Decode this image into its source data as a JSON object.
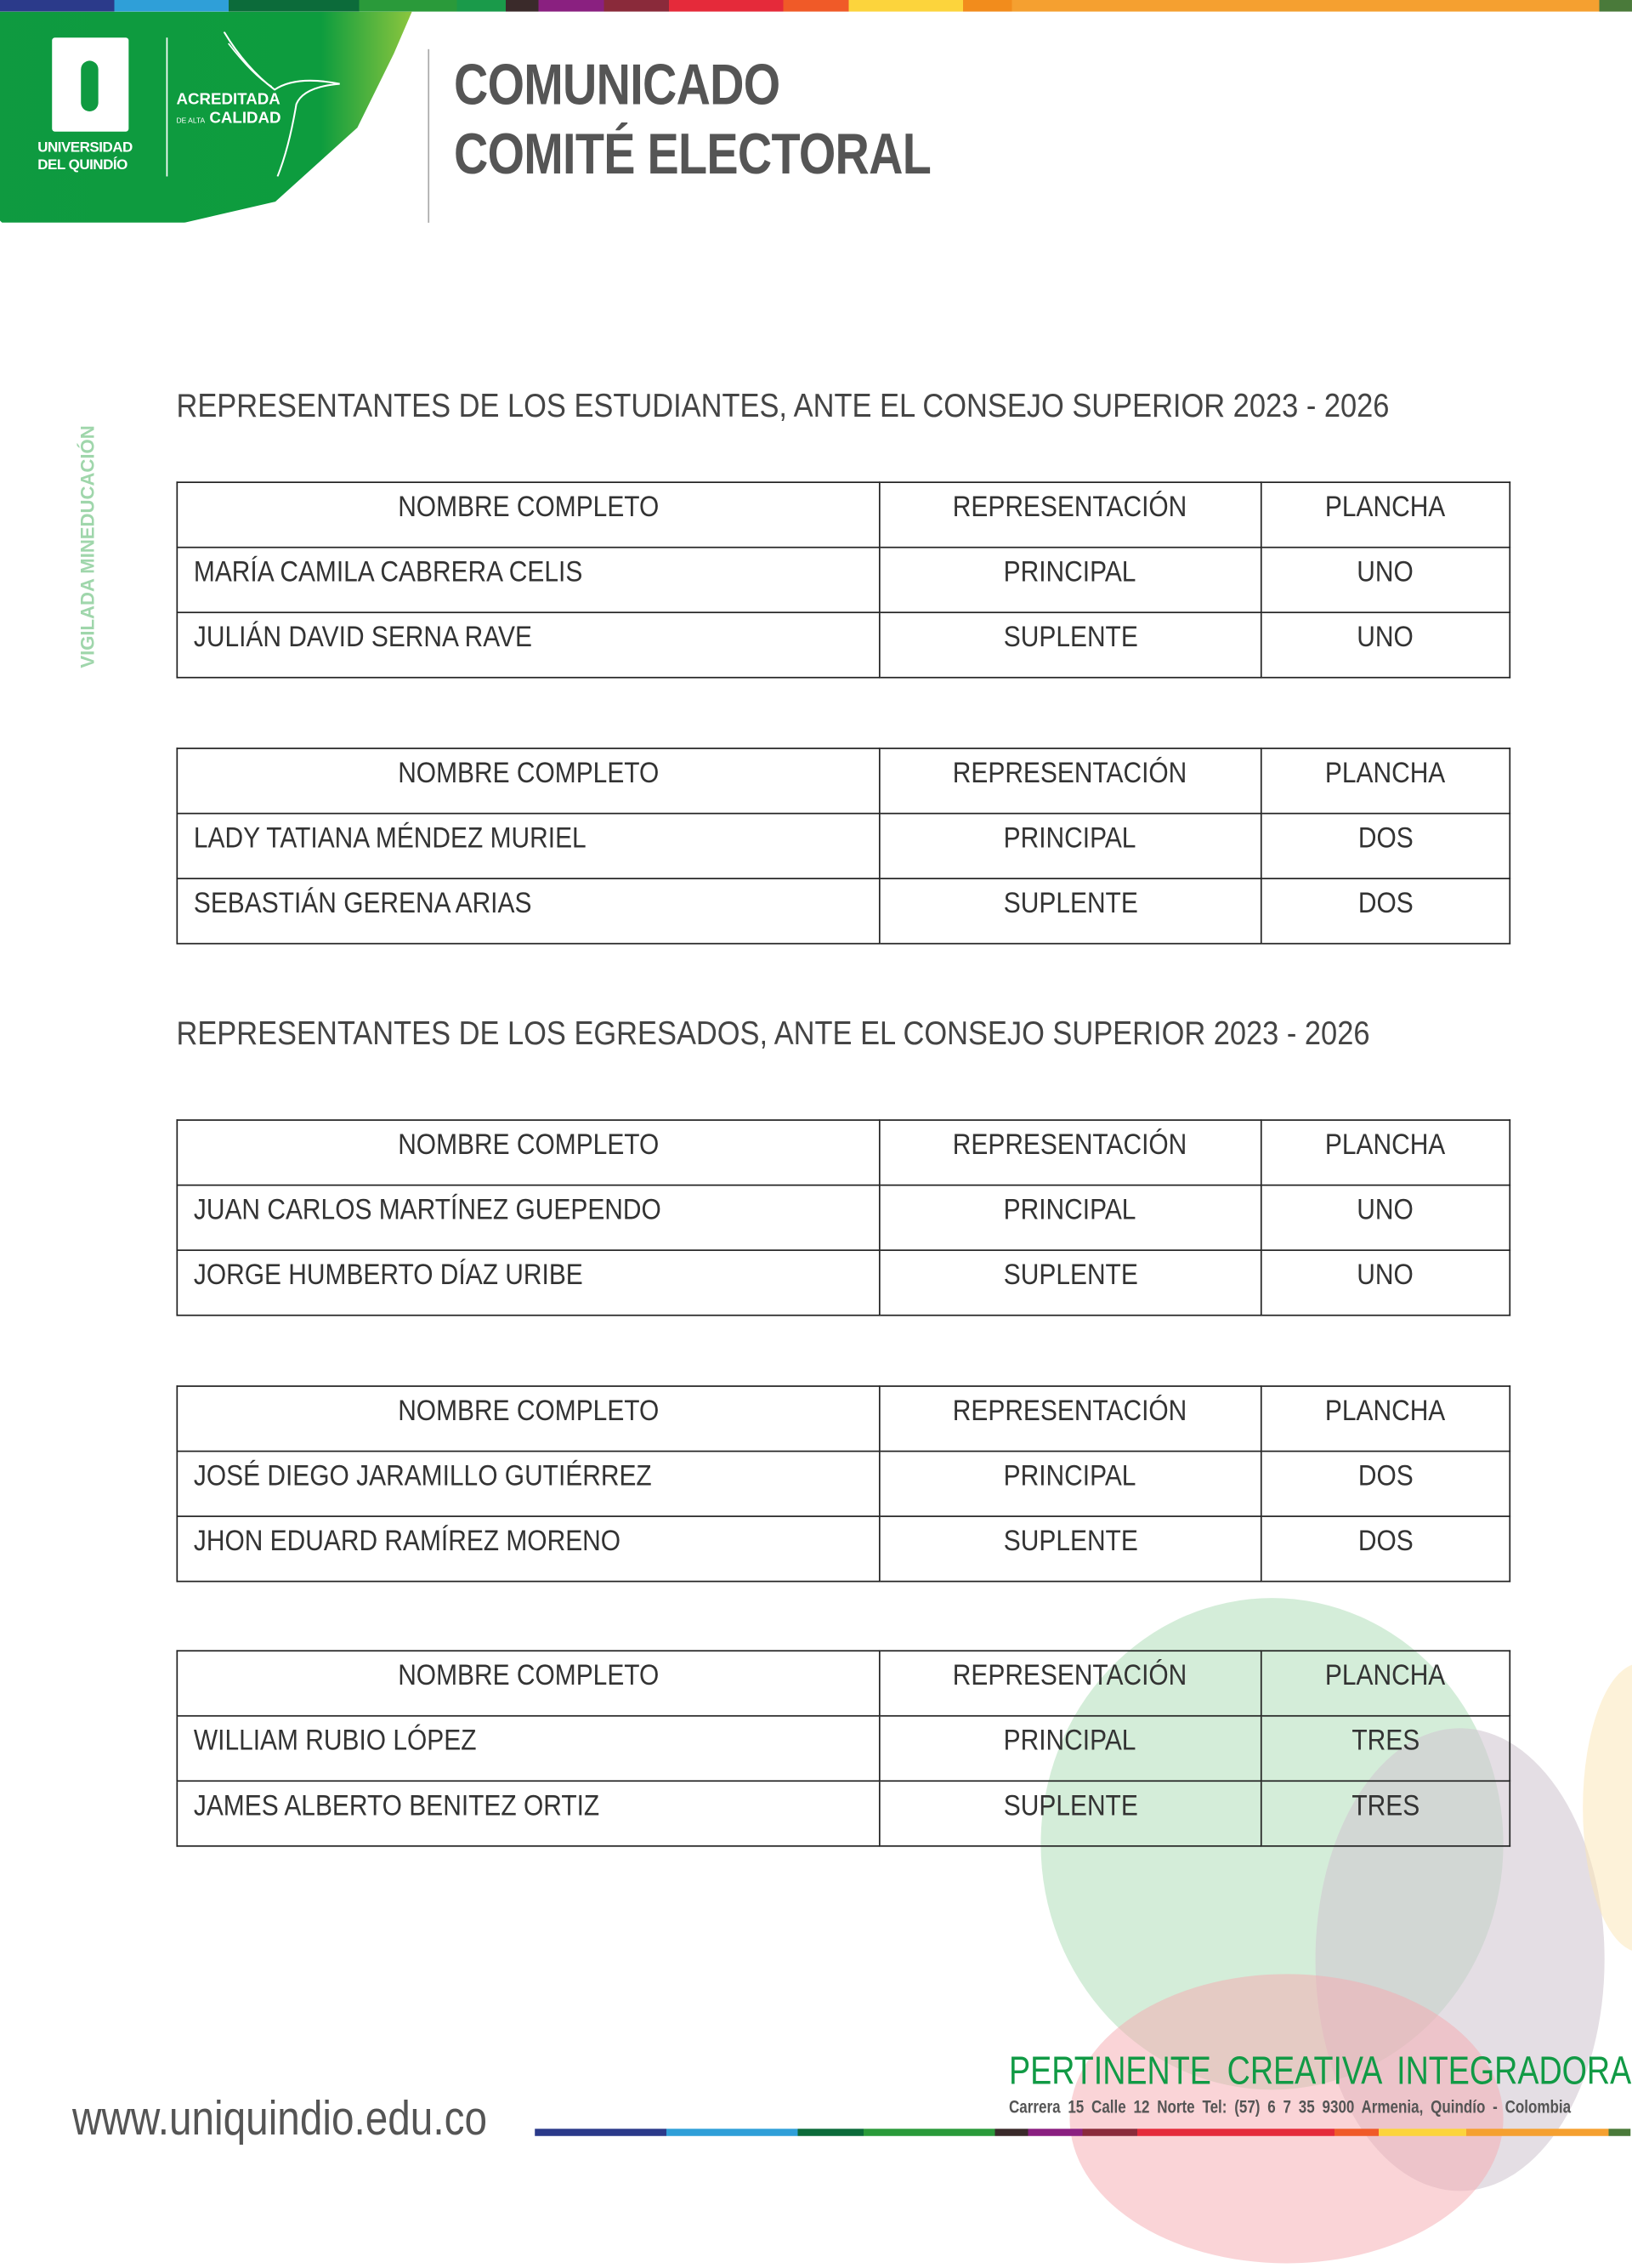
{
  "header": {
    "logo": {
      "name_line1": "UNIVERSIDAD",
      "name_line2": "DEL QUINDÍO",
      "accreditation_line1": "ACREDITADA",
      "accreditation_small": "DE ALTA",
      "accreditation_line2": "CALIDAD"
    },
    "title_line1": "COMUNICADO",
    "title_line2": "COMITÉ ELECTORAL"
  },
  "side_label": "VIGILADA MINEDUCACIÓN",
  "columns": {
    "name": "NOMBRE COMPLETO",
    "role": "REPRESENTACIÓN",
    "slate": "PLANCHA"
  },
  "sections": [
    {
      "heading": "REPRESENTANTES DE LOS ESTUDIANTES, ANTE EL CONSEJO SUPERIOR  2023 - 2026",
      "tables": [
        {
          "rows": [
            {
              "name": "MARÍA CAMILA CABRERA CELIS",
              "role": "PRINCIPAL",
              "slate": "UNO"
            },
            {
              "name": "JULIÁN DAVID SERNA RAVE",
              "role": "SUPLENTE",
              "slate": "UNO"
            }
          ]
        },
        {
          "rows": [
            {
              "name": "LADY TATIANA MÉNDEZ MURIEL",
              "role": "PRINCIPAL",
              "slate": "DOS"
            },
            {
              "name": "SEBASTIÁN GERENA ARIAS",
              "role": "SUPLENTE",
              "slate": "DOS"
            }
          ]
        }
      ]
    },
    {
      "heading": "REPRESENTANTES DE LOS EGRESADOS, ANTE EL CONSEJO SUPERIOR  2023 - 2026",
      "tables": [
        {
          "rows": [
            {
              "name": "JUAN CARLOS MARTÍNEZ GUEPENDO",
              "role": "PRINCIPAL",
              "slate": "UNO"
            },
            {
              "name": "JORGE HUMBERTO DÍAZ URIBE",
              "role": "SUPLENTE",
              "slate": "UNO"
            }
          ]
        },
        {
          "rows": [
            {
              "name": "JOSÉ DIEGO JARAMILLO GUTIÉRREZ",
              "role": "PRINCIPAL",
              "slate": "DOS"
            },
            {
              "name": "JHON EDUARD RAMÍREZ MORENO",
              "role": "SUPLENTE",
              "slate": "DOS"
            }
          ]
        },
        {
          "rows": [
            {
              "name": "WILLIAM RUBIO LÓPEZ",
              "role": "PRINCIPAL",
              "slate": "TRES"
            },
            {
              "name": "JAMES ALBERTO BENITEZ ORTIZ",
              "role": "SUPLENTE",
              "slate": "TRES"
            }
          ]
        }
      ]
    }
  ],
  "footer": {
    "slogan": "PERTINENTE  CREATIVA  INTEGRADORA",
    "address": "Carrera 15 Calle 12 Norte   Tel: (57) 6 7 35 9300   Armenia, Quindío - Colombia",
    "website": "www.uniquindio.edu.co"
  },
  "colors": {
    "brand_green": "#0f9a40",
    "title_gray": "#555555",
    "side_label": "#9fd6ab"
  }
}
